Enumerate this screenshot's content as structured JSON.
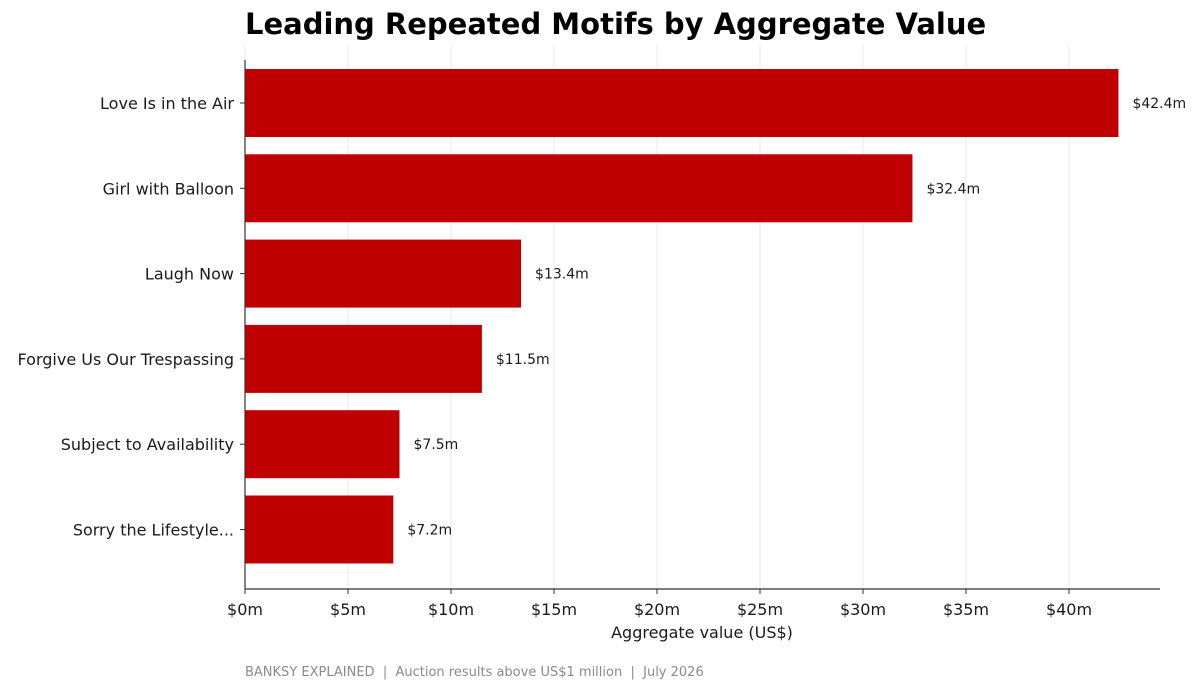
{
  "chart_data": {
    "type": "bar",
    "orientation": "horizontal",
    "title": "Leading Repeated Motifs by Aggregate Value",
    "xlabel": "Aggregate value (US$)",
    "ylabel": "",
    "categories": [
      "Love Is in the Air",
      "Girl with Balloon",
      "Laugh Now",
      "Forgive Us Our Trespassing",
      "Subject to Availability",
      "Sorry the Lifestyle..."
    ],
    "values": [
      42.4,
      32.4,
      13.4,
      11.5,
      7.5,
      7.2
    ],
    "value_labels": [
      "$42.4m",
      "$32.4m",
      "$13.4m",
      "$11.5m",
      "$7.5m",
      "$7.2m"
    ],
    "xlim": [
      0,
      44.5
    ],
    "xticks": [
      0,
      5,
      10,
      15,
      20,
      25,
      30,
      35,
      40
    ],
    "xtick_labels": [
      "$0m",
      "$5m",
      "$10m",
      "$15m",
      "$20m",
      "$25m",
      "$30m",
      "$35m",
      "$40m"
    ],
    "grid": "vertical",
    "bar_color": "#c00000",
    "grid_color": "#e8e8e8",
    "source": "BANKSY EXPLAINED  |  Auction results above US$1 million  |  July 2026"
  }
}
